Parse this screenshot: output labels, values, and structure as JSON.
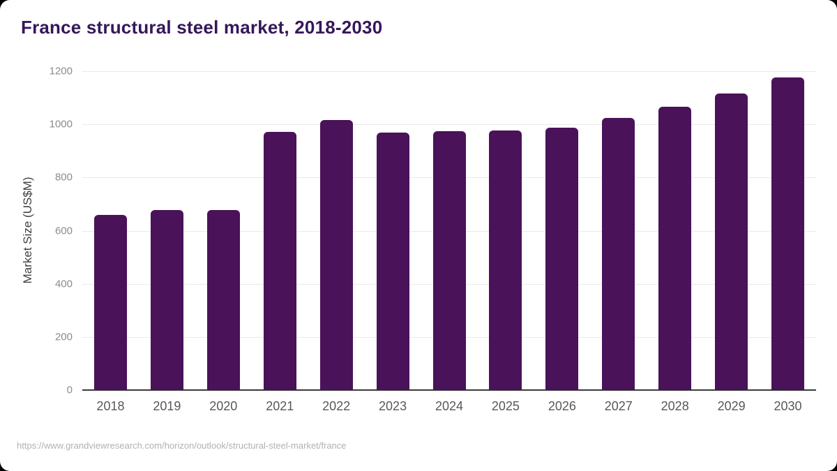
{
  "page": {
    "background_color": "#000000",
    "card_background_color": "#ffffff"
  },
  "header": {
    "title": "France structural steel market, 2018-2030",
    "title_color": "#35175a"
  },
  "footer": {
    "url": "https://www.grandviewresearch.com/horizon/outlook/structural-steel-market/france"
  },
  "chart_data": {
    "type": "bar",
    "title": "France structural steel market, 2018-2030",
    "categories": [
      "2018",
      "2019",
      "2020",
      "2021",
      "2022",
      "2023",
      "2024",
      "2025",
      "2026",
      "2027",
      "2028",
      "2029",
      "2030"
    ],
    "values": [
      660,
      677,
      677,
      972,
      1015,
      970,
      973,
      976,
      987,
      1023,
      1066,
      1115,
      1177
    ],
    "xlabel": "",
    "ylabel": "Market Size (US$M)",
    "ylim": [
      0,
      1200
    ],
    "ytick_step": 200,
    "yticks": [
      0,
      200,
      400,
      600,
      800,
      1000,
      1200
    ],
    "grid": true,
    "legend": false,
    "bar_color": "#4a1259",
    "gridline_color": "#e9e9e9",
    "axis_line_color": "#3a3a3a",
    "ytick_label_color": "#8b8b8b",
    "xtick_label_color": "#57585a"
  }
}
